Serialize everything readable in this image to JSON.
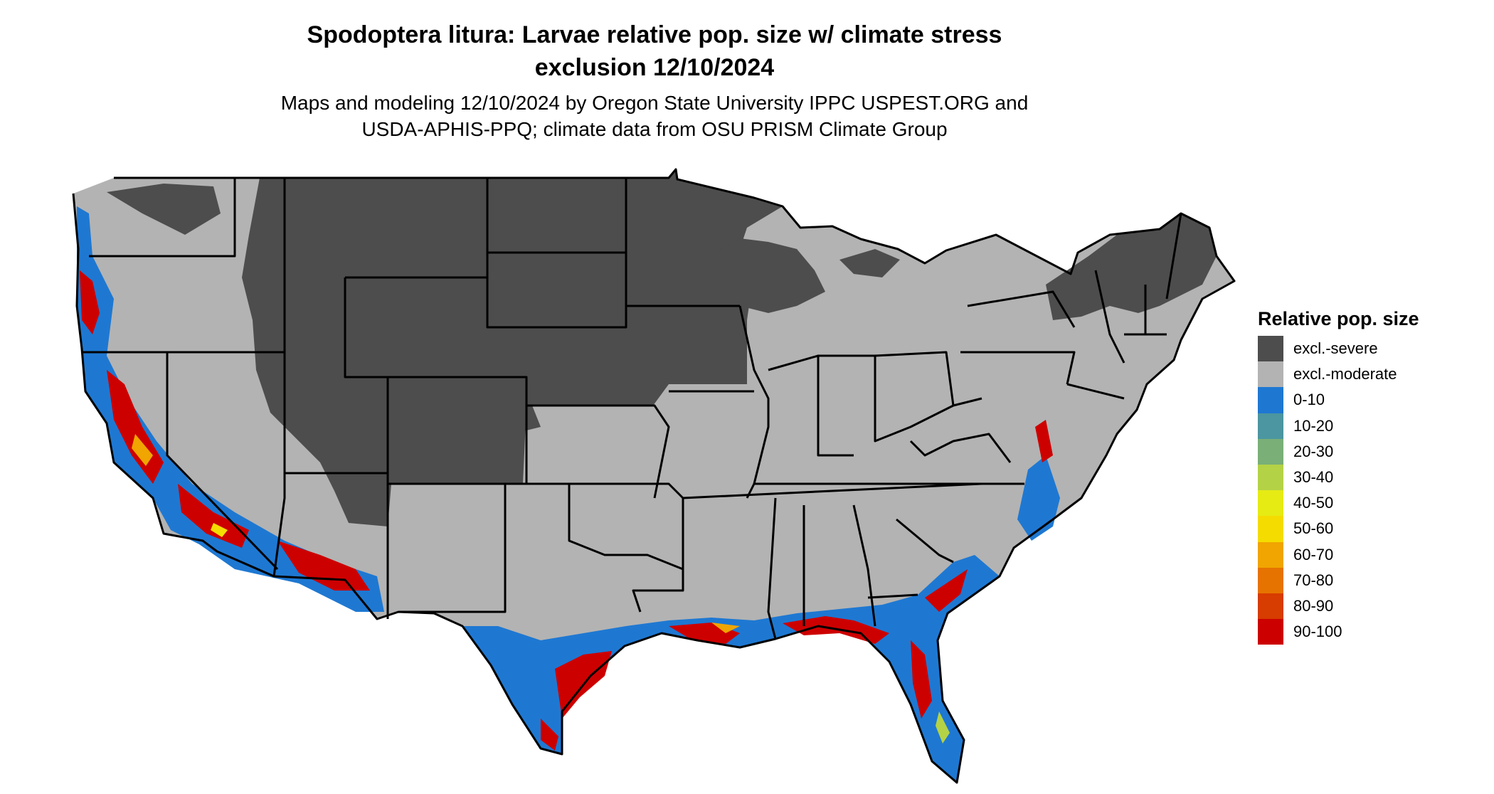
{
  "title_line1": "Spodoptera litura: Larvae relative pop. size w/ climate stress",
  "title_line2": "exclusion 12/10/2024",
  "subtitle_line1": "Maps and modeling 12/10/2024 by Oregon State University IPPC USPEST.ORG and",
  "subtitle_line2": "USDA-APHIS-PPQ; climate data from OSU PRISM Climate Group",
  "legend": {
    "title": "Relative pop. size",
    "items": [
      {
        "label": "excl.-severe",
        "color": "#4d4d4d"
      },
      {
        "label": "excl.-moderate",
        "color": "#b3b3b3"
      },
      {
        "label": "0-10",
        "color": "#1e78d2"
      },
      {
        "label": "10-20",
        "color": "#4b96a0"
      },
      {
        "label": "20-30",
        "color": "#7aaf78"
      },
      {
        "label": "30-40",
        "color": "#b4d246"
      },
      {
        "label": "40-50",
        "color": "#e6eb14"
      },
      {
        "label": "50-60",
        "color": "#f5dc00"
      },
      {
        "label": "60-70",
        "color": "#f0a500"
      },
      {
        "label": "70-80",
        "color": "#e67300"
      },
      {
        "label": "80-90",
        "color": "#d73c00"
      },
      {
        "label": "90-100",
        "color": "#cd0000"
      }
    ]
  }
}
